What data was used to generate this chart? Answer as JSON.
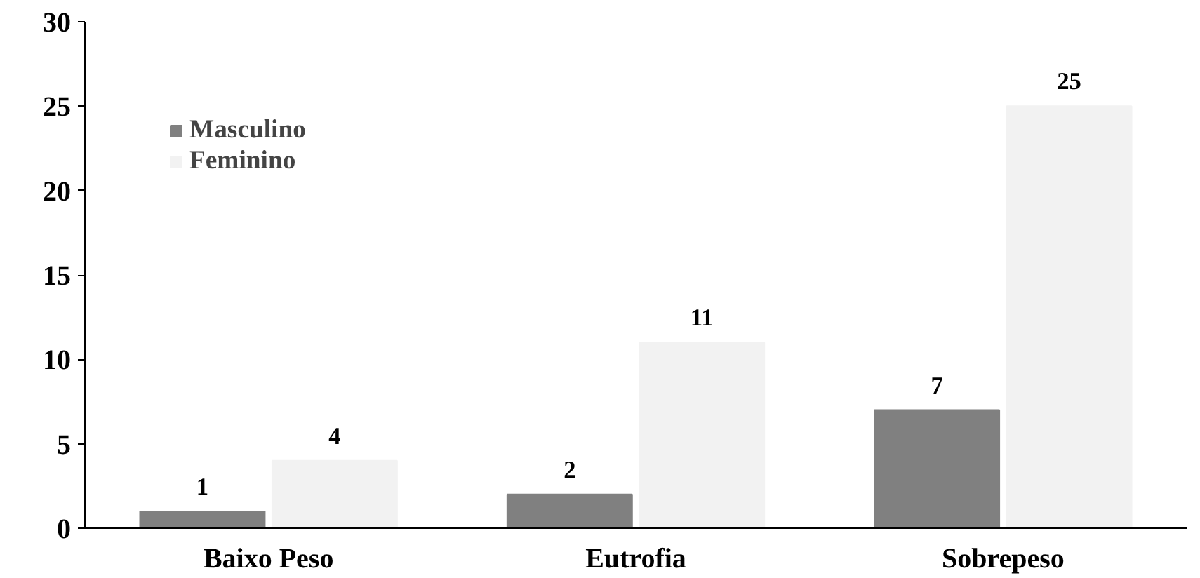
{
  "chart_data": {
    "type": "bar",
    "categories": [
      "Baixo Peso",
      "Eutrofia",
      "Sobrepeso"
    ],
    "series": [
      {
        "name": "Masculino",
        "color": "#808080",
        "values": [
          1,
          2,
          7
        ]
      },
      {
        "name": "Feminino",
        "color": "#f2f2f2",
        "values": [
          4,
          11,
          25
        ]
      }
    ],
    "ylim": [
      0,
      30
    ],
    "yticks": [
      0,
      5,
      10,
      15,
      20,
      25,
      30
    ],
    "data_labels": true,
    "legend": "top left",
    "grid": false
  }
}
